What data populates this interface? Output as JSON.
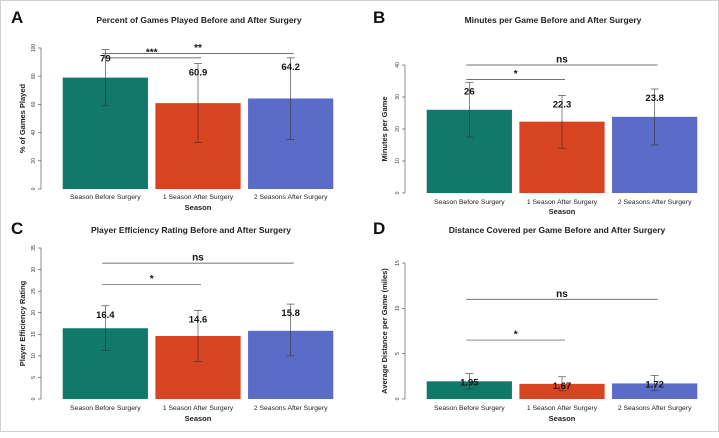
{
  "colors": {
    "bar_1": "#10796a",
    "bar_2": "#d84420",
    "bar_3": "#5a6cc8"
  },
  "chart_data": [
    {
      "type": "bar",
      "panel_letter": "A",
      "title": "Percent of Games Played Before and After Surgery",
      "xlabel": "Season",
      "ylabel": "% of Games Played",
      "ylim": [
        0,
        100
      ],
      "yticks": [
        0,
        20,
        40,
        60,
        80,
        100
      ],
      "categories": [
        "Season Before Surgery",
        "1 Season After Surgery",
        "2 Seasons After Surgery"
      ],
      "values": [
        79,
        60.9,
        64.2
      ],
      "value_labels": [
        "79",
        "60.9",
        "64.2"
      ],
      "error_bars": [
        [
          59,
          99
        ],
        [
          33,
          89
        ],
        [
          35,
          93
        ]
      ],
      "significance": [
        {
          "from": 0,
          "to": 2,
          "label": "**",
          "y": 96
        },
        {
          "from": 0,
          "to": 1,
          "label": "***",
          "y": 93
        }
      ]
    },
    {
      "type": "bar",
      "panel_letter": "B",
      "title": "Minutes per Game Before and After Surgery",
      "xlabel": "Season",
      "ylabel": "Minutes per Game",
      "ylim": [
        0,
        40
      ],
      "yticks": [
        0,
        10,
        20,
        30,
        40
      ],
      "categories": [
        "Season Before Surgery",
        "1 Season After Surgery",
        "2 Seasons After Surgery"
      ],
      "values": [
        26,
        22.3,
        23.8
      ],
      "value_labels": [
        "26",
        "22.3",
        "23.8"
      ],
      "error_bars": [
        [
          17.5,
          34.5
        ],
        [
          14,
          30.5
        ],
        [
          15,
          32.5
        ]
      ],
      "significance": [
        {
          "from": 0,
          "to": 2,
          "label": "ns",
          "y": 40
        },
        {
          "from": 0,
          "to": 1,
          "label": "*",
          "y": 35.5
        }
      ]
    },
    {
      "type": "bar",
      "panel_letter": "C",
      "title": "Player Efficiency Rating Before and After Surgery",
      "xlabel": "Season",
      "ylabel": "Player Efficiency Rating",
      "ylim": [
        0,
        35
      ],
      "yticks": [
        0,
        5,
        10,
        15,
        20,
        25,
        30,
        35
      ],
      "categories": [
        "Season Before Surgery",
        "1 Season After Surgery",
        "2 Seasons After Surgery"
      ],
      "values": [
        16.4,
        14.6,
        15.8
      ],
      "value_labels": [
        "16.4",
        "14.6",
        "15.8"
      ],
      "error_bars": [
        [
          11.2,
          21.6
        ],
        [
          8.7,
          20.5
        ],
        [
          10,
          22
        ]
      ],
      "significance": [
        {
          "from": 0,
          "to": 2,
          "label": "ns",
          "y": 31.5
        },
        {
          "from": 0,
          "to": 1,
          "label": "*",
          "y": 26.5
        }
      ]
    },
    {
      "type": "bar",
      "panel_letter": "D",
      "title": "Distance Covered per Game Before and After Surgery",
      "xlabel": "Season",
      "ylabel": "Average Distance per Game (miles)",
      "ylim": [
        0,
        15
      ],
      "yticks": [
        0,
        5,
        10,
        15
      ],
      "categories": [
        "Season Before Surgery",
        "1 Season After Surgery",
        "2 Seasons After Surgery"
      ],
      "values": [
        1.95,
        1.67,
        1.72
      ],
      "value_labels": [
        "1.95",
        "1.67",
        "1.72"
      ],
      "error_bars": [
        [
          1.1,
          2.8
        ],
        [
          0.9,
          2.45
        ],
        [
          0.9,
          2.6
        ]
      ],
      "significance": [
        {
          "from": 0,
          "to": 2,
          "label": "ns",
          "y": 11
        },
        {
          "from": 0,
          "to": 1,
          "label": "*",
          "y": 6.5
        }
      ]
    }
  ]
}
